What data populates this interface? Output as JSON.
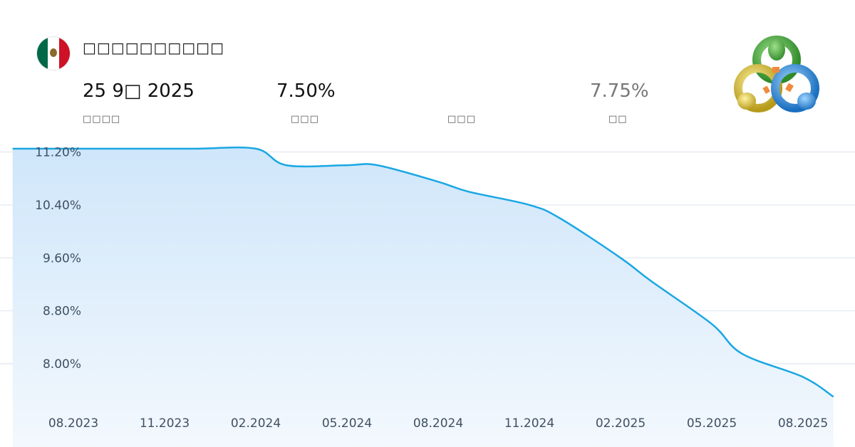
{
  "header": {
    "title": "□□□□□□□□□□",
    "date_value": "25 9□ 2025",
    "date_label": "□□□□",
    "actual_value": "7.50%",
    "actual_label": "□□□",
    "forecast_value": "",
    "forecast_label": "□□□",
    "previous_value": "7.75%",
    "previous_label": "□□"
  },
  "icons": {
    "flag": "mexico-flag-icon",
    "logo": "metatrader-logo-icon"
  },
  "colors": {
    "line": "#1aa7e3",
    "fill_top": "#cfe6fa",
    "fill_bottom": "#f3f8fd",
    "grid": "#e6ecf2"
  },
  "chart_data": {
    "type": "area",
    "title": "",
    "xlabel": "",
    "ylabel": "",
    "ylim": [
      7.4,
      11.4
    ],
    "yticks": [
      "8.00%",
      "8.80%",
      "9.60%",
      "10.40%",
      "11.20%"
    ],
    "ytick_values": [
      8.0,
      8.8,
      9.6,
      10.4,
      11.2
    ],
    "xticks": [
      "08.2023",
      "11.2023",
      "02.2024",
      "05.2024",
      "08.2024",
      "11.2024",
      "02.2025",
      "05.2025",
      "08.2025"
    ],
    "grid": true,
    "series": [
      {
        "x": [
          "2023-06",
          "2023-08",
          "2023-10",
          "2023-12",
          "2024-02",
          "2024-03",
          "2024-05",
          "2024-06",
          "2024-08",
          "2024-09",
          "2024-11",
          "2024-12",
          "2025-02",
          "2025-03",
          "2025-05",
          "2025-06",
          "2025-08",
          "2025-09"
        ],
        "values": [
          11.25,
          11.25,
          11.25,
          11.25,
          11.25,
          11.0,
          11.0,
          11.0,
          10.75,
          10.6,
          10.4,
          10.2,
          9.6,
          9.25,
          8.6,
          8.15,
          7.8,
          7.5
        ]
      }
    ]
  }
}
